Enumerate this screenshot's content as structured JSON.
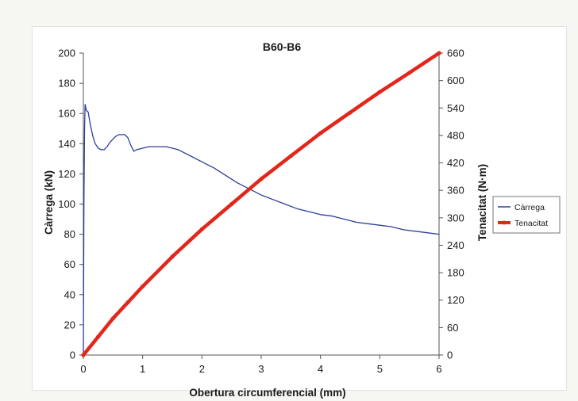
{
  "chart_data": {
    "type": "line",
    "title": "B60-B6",
    "xlabel": "Obertura circumferencial (mm)",
    "ylabel": "Càrrega (kN)",
    "y2label": "Tenacitat (N·m)",
    "xlim": [
      0,
      6
    ],
    "ylim": [
      0,
      200
    ],
    "y2lim": [
      0,
      660
    ],
    "xticks": [
      "0",
      "1",
      "2",
      "3",
      "4",
      "5",
      "6"
    ],
    "yticks": [
      "0",
      "20",
      "40",
      "60",
      "80",
      "100",
      "120",
      "140",
      "160",
      "180",
      "200"
    ],
    "y2ticks": [
      "0",
      "60",
      "120",
      "180",
      "240",
      "300",
      "360",
      "420",
      "480",
      "540",
      "600",
      "660"
    ],
    "grid": false,
    "legend_position": "right",
    "series": [
      {
        "name": "Càrrega",
        "axis": "left",
        "color": "#2f3d9a",
        "x": [
          0,
          0.01,
          0.02,
          0.03,
          0.05,
          0.08,
          0.12,
          0.16,
          0.2,
          0.25,
          0.3,
          0.35,
          0.4,
          0.45,
          0.5,
          0.55,
          0.6,
          0.65,
          0.7,
          0.75,
          0.8,
          0.85,
          0.9,
          1.0,
          1.1,
          1.2,
          1.3,
          1.4,
          1.5,
          1.6,
          1.7,
          1.8,
          2.0,
          2.2,
          2.4,
          2.6,
          2.8,
          3.0,
          3.2,
          3.4,
          3.6,
          3.8,
          4.0,
          4.2,
          4.4,
          4.6,
          4.8,
          5.0,
          5.2,
          5.4,
          5.6,
          5.8,
          6.0
        ],
        "y": [
          0,
          100,
          150,
          166,
          162,
          161,
          152,
          145,
          140,
          137,
          136,
          136,
          138,
          141,
          143,
          145,
          146,
          146,
          146,
          144,
          139,
          135,
          136,
          137,
          138,
          138,
          138,
          138,
          137,
          136,
          134,
          132,
          128,
          124,
          119,
          114,
          110,
          106,
          103,
          100,
          97,
          95,
          93,
          92,
          90,
          88,
          87,
          86,
          85,
          83,
          82,
          81,
          80
        ]
      },
      {
        "name": "Tenacitat",
        "axis": "right",
        "color": "#e3261b",
        "x": [
          0,
          0.25,
          0.5,
          0.75,
          1.0,
          1.5,
          2.0,
          2.5,
          3.0,
          3.5,
          4.0,
          4.5,
          5.0,
          5.5,
          6.0
        ],
        "y": [
          0,
          40,
          80,
          115,
          150,
          215,
          275,
          330,
          385,
          435,
          485,
          530,
          575,
          617,
          660
        ]
      }
    ]
  }
}
